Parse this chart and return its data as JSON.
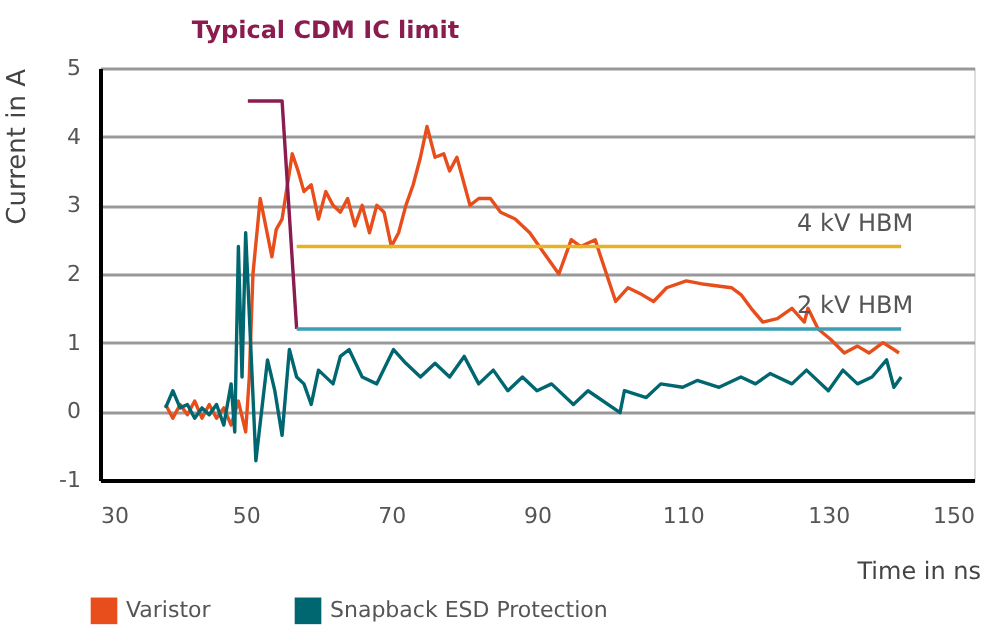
{
  "chart_data": {
    "type": "line",
    "xlabel": "Time in ns",
    "ylabel": "Current in A",
    "xlim": [
      30,
      150
    ],
    "xticks": [
      30,
      50,
      70,
      90,
      110,
      130,
      150
    ],
    "ylim": [
      -1,
      5
    ],
    "yticks": [
      -1,
      0,
      1,
      2,
      3,
      4,
      5
    ],
    "grid": "y",
    "legend": "bottom",
    "line_style": "solid",
    "marker": "none",
    "series": [
      {
        "name": "Varistor",
        "color": "#e84e1b",
        "x": [
          39,
          40,
          41,
          42,
          43,
          44,
          45,
          46,
          47,
          48,
          49,
          50,
          50.5,
          51,
          52,
          53.6,
          54.2,
          55,
          56.4,
          57.2,
          58,
          59,
          60,
          61,
          62,
          63,
          64,
          65,
          66,
          67,
          68,
          69,
          70,
          71,
          72,
          73,
          74,
          74.9,
          76,
          77.2,
          78,
          79,
          80.8,
          82,
          83.6,
          85,
          87,
          89,
          91,
          93,
          94.7,
          96,
          98,
          98.6,
          100.8,
          102.5,
          104.4,
          106,
          107.8,
          110.5,
          113,
          116.7,
          118,
          119.4,
          121,
          123,
          125,
          126.7,
          127.2,
          128.6,
          130.3,
          132.2,
          134,
          135.6,
          137.5,
          139,
          139.7
        ],
        "values": [
          0.1,
          -0.1,
          0.1,
          -0.05,
          0.15,
          -0.1,
          0.1,
          -0.1,
          0.05,
          -0.2,
          0.15,
          -0.3,
          0.5,
          2.0,
          3.1,
          2.25,
          2.65,
          2.8,
          3.75,
          3.5,
          3.2,
          3.3,
          2.8,
          3.2,
          3.0,
          2.9,
          3.1,
          2.7,
          3.0,
          2.6,
          3.0,
          2.9,
          2.4,
          2.6,
          3.0,
          3.3,
          3.7,
          4.15,
          3.7,
          3.75,
          3.5,
          3.7,
          3.0,
          3.1,
          3.1,
          2.9,
          2.8,
          2.6,
          2.3,
          2.0,
          2.5,
          2.4,
          2.5,
          2.3,
          1.6,
          1.8,
          1.7,
          1.6,
          1.8,
          1.9,
          1.85,
          1.8,
          1.7,
          1.5,
          1.3,
          1.35,
          1.5,
          1.3,
          1.5,
          1.2,
          1.05,
          0.85,
          0.95,
          0.85,
          1.0,
          0.9,
          0.85
        ]
      },
      {
        "name": "Snapback ESD Protection",
        "color": "#006670",
        "x": [
          39,
          40,
          41,
          42,
          43,
          44,
          45,
          46,
          47,
          48,
          48.5,
          49,
          49.5,
          50,
          51.4,
          53,
          54,
          55,
          56,
          57,
          58,
          59,
          60,
          62,
          63,
          64.2,
          66,
          68,
          70.3,
          72,
          74,
          76,
          78,
          80,
          82,
          84,
          86,
          88,
          90,
          92,
          95,
          97,
          101.4,
          102,
          105,
          107,
          110,
          112,
          115,
          118,
          120,
          122,
          125,
          127,
          130,
          132,
          134,
          136,
          138,
          139,
          140
        ],
        "values": [
          0.05,
          0.3,
          0.05,
          0.1,
          -0.1,
          0.05,
          -0.05,
          0.1,
          -0.2,
          0.4,
          -0.3,
          2.4,
          0.5,
          2.6,
          -0.72,
          0.75,
          0.3,
          -0.35,
          0.9,
          0.5,
          0.4,
          0.1,
          0.6,
          0.4,
          0.8,
          0.9,
          0.5,
          0.4,
          0.9,
          0.7,
          0.5,
          0.7,
          0.5,
          0.8,
          0.4,
          0.6,
          0.3,
          0.5,
          0.3,
          0.4,
          0.1,
          0.3,
          -0.02,
          0.3,
          0.2,
          0.4,
          0.35,
          0.45,
          0.35,
          0.5,
          0.4,
          0.55,
          0.4,
          0.6,
          0.3,
          0.6,
          0.4,
          0.5,
          0.75,
          0.35,
          0.5
        ]
      },
      {
        "name": "Typical CDM IC limit",
        "color": "#8a1c4f",
        "x": [
          50.3,
          55,
          57
        ],
        "values": [
          4.52,
          4.52,
          1.2
        ]
      },
      {
        "color": "#e6b325",
        "x": [
          57,
          140
        ],
        "values": [
          2.4,
          2.4
        ]
      },
      {
        "color": "#3a9fb5",
        "x": [
          57,
          140
        ],
        "values": [
          1.2,
          1.2
        ]
      }
    ],
    "annotations": [
      {
        "text": "4 kV HBM",
        "x": 140,
        "y": 2.4
      },
      {
        "text": "2 kV HBM",
        "x": 140,
        "y": 1.2
      }
    ]
  }
}
